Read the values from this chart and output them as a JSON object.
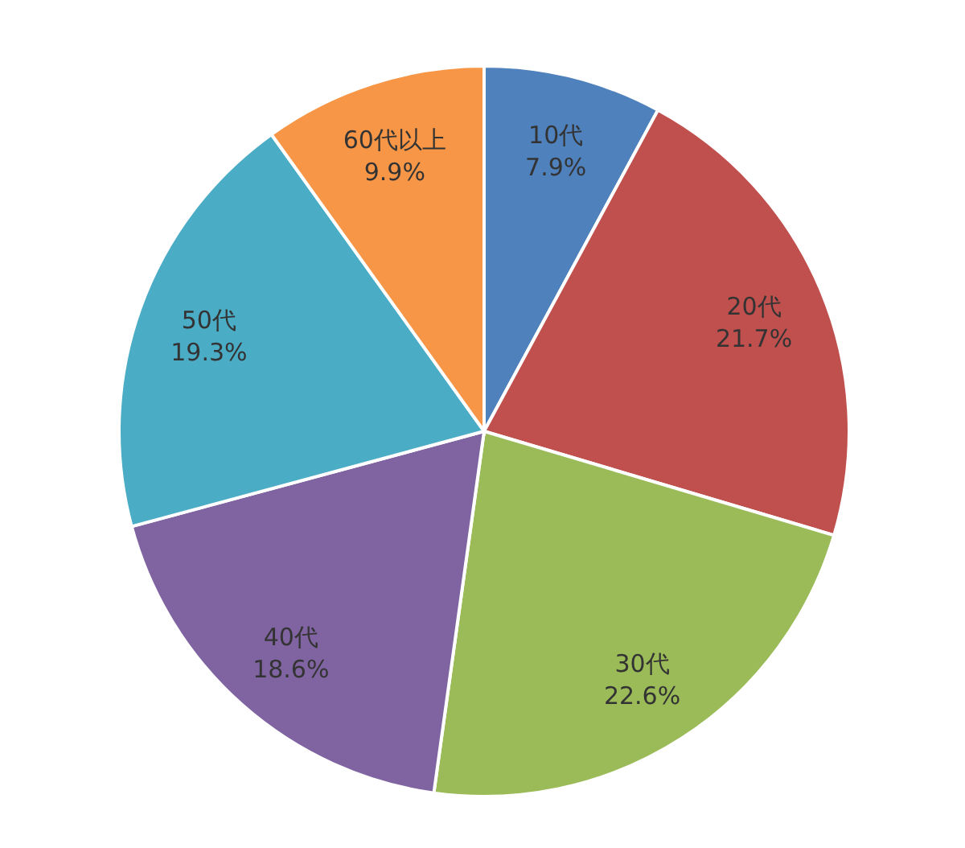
{
  "chart_data": {
    "type": "pie",
    "categories": [
      "10代",
      "20代",
      "30代",
      "40代",
      "50代",
      "60代以上"
    ],
    "values": [
      7.9,
      21.7,
      22.6,
      18.6,
      19.3,
      9.9
    ],
    "colors": [
      "#4f81bd",
      "#c0504d",
      "#9bbb59",
      "#8064a2",
      "#4bacc6",
      "#f79646"
    ],
    "value_labels": [
      "7.9%",
      "21.7%",
      "22.6%",
      "18.6%",
      "19.3%",
      "9.9%"
    ]
  }
}
